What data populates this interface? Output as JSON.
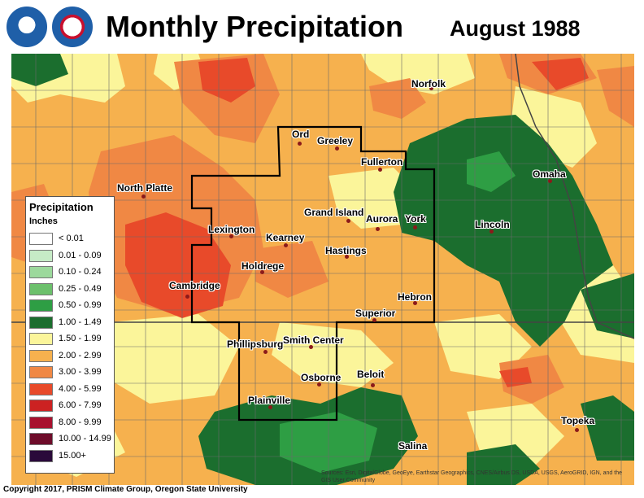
{
  "header": {
    "title": "Monthly Precipitation",
    "period": "August 1988",
    "logos": [
      "noaa-logo",
      "national-weather-service-logo"
    ]
  },
  "legend": {
    "title": "Precipitation",
    "unit": "Inches",
    "items": [
      {
        "label": "< 0.01",
        "color": "#ffffff"
      },
      {
        "label": "0.01 - 0.09",
        "color": "#c6ebc6"
      },
      {
        "label": "0.10 - 0.24",
        "color": "#9cd99c"
      },
      {
        "label": "0.25 - 0.49",
        "color": "#6cc06c"
      },
      {
        "label": "0.50 - 0.99",
        "color": "#2e9e44"
      },
      {
        "label": "1.00 - 1.49",
        "color": "#1b6e2e"
      },
      {
        "label": "1.50 - 1.99",
        "color": "#fbf59a"
      },
      {
        "label": "2.00 - 2.99",
        "color": "#f6b14e"
      },
      {
        "label": "3.00 - 3.99",
        "color": "#f08844"
      },
      {
        "label": "4.00 - 5.99",
        "color": "#e84a2a"
      },
      {
        "label": "6.00 - 7.99",
        "color": "#cc2222"
      },
      {
        "label": "8.00 - 9.99",
        "color": "#a8112e"
      },
      {
        "label": "10.00 - 14.99",
        "color": "#6e0c2a"
      },
      {
        "label": "15.00+",
        "color": "#2a0a3a"
      }
    ]
  },
  "cities": [
    {
      "name": "Norfolk"
    },
    {
      "name": "Ord"
    },
    {
      "name": "Greeley"
    },
    {
      "name": "Fullerton"
    },
    {
      "name": "North Platte"
    },
    {
      "name": "Omaha"
    },
    {
      "name": "Grand Island"
    },
    {
      "name": "Aurora"
    },
    {
      "name": "York"
    },
    {
      "name": "Lincoln"
    },
    {
      "name": "Lexington"
    },
    {
      "name": "Kearney"
    },
    {
      "name": "Hastings"
    },
    {
      "name": "Holdrege"
    },
    {
      "name": "Cambridge"
    },
    {
      "name": "Hebron"
    },
    {
      "name": "Superior"
    },
    {
      "name": "Phillipsburg"
    },
    {
      "name": "Smith Center"
    },
    {
      "name": "Osborne"
    },
    {
      "name": "Beloit"
    },
    {
      "name": "Plainville"
    },
    {
      "name": "Topeka"
    },
    {
      "name": "Salina"
    }
  ],
  "footer": {
    "copyright": "Copyright 2017, PRISM Climate Group, Oregon State University",
    "attribution": "Sources: Esri, DigitalGlobe, GeoEye, Earthstar Geographics, CNES/Airbus DS, USDA, USGS, AeroGRID, IGN, and the GIS User Community"
  }
}
